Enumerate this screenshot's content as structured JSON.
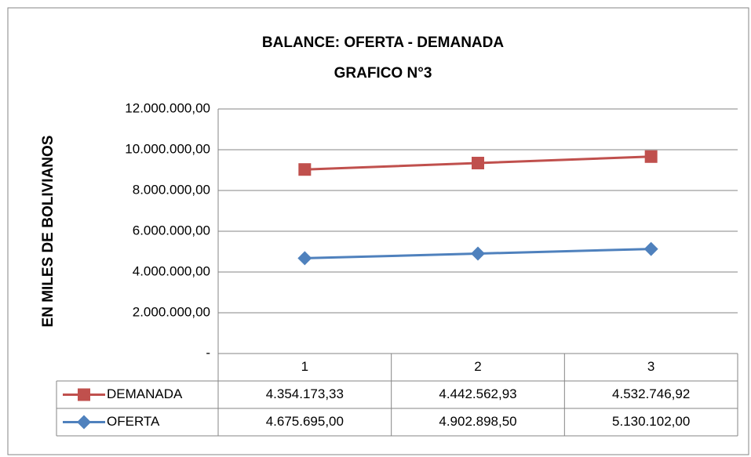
{
  "chart_data": {
    "type": "line",
    "stacked": true,
    "title": "BALANCE: OFERTA - DEMANADA",
    "subtitle": "GRAFICO N°3",
    "y_label": "EN MILES DE BOLIVIANOS",
    "categories": [
      "1",
      "2",
      "3"
    ],
    "series": [
      {
        "name": "DEMANADA",
        "color": "#c0504d",
        "marker": "square",
        "values": [
          4354173.33,
          4442562.93,
          4532746.92
        ],
        "value_labels": [
          "4.354.173,33",
          "4.442.562,93",
          "4.532.746,92"
        ]
      },
      {
        "name": "OFERTA",
        "color": "#4f81bd",
        "marker": "diamond",
        "values": [
          4675695.0,
          4902898.5,
          5130102.0
        ],
        "value_labels": [
          "4.675.695,00",
          "4.902.898,50",
          "5.130.102,00"
        ]
      }
    ],
    "ylim": [
      0,
      12000000
    ],
    "yticks": [
      {
        "value": 0,
        "label": "-"
      },
      {
        "value": 2000000,
        "label": "2.000.000,00"
      },
      {
        "value": 4000000,
        "label": "4.000.000,00"
      },
      {
        "value": 6000000,
        "label": "6.000.000,00"
      },
      {
        "value": 8000000,
        "label": "8.000.000,00"
      },
      {
        "value": 10000000,
        "label": "10.000.000,00"
      },
      {
        "value": 12000000,
        "label": "12.000.000,00"
      }
    ],
    "grid": true
  }
}
